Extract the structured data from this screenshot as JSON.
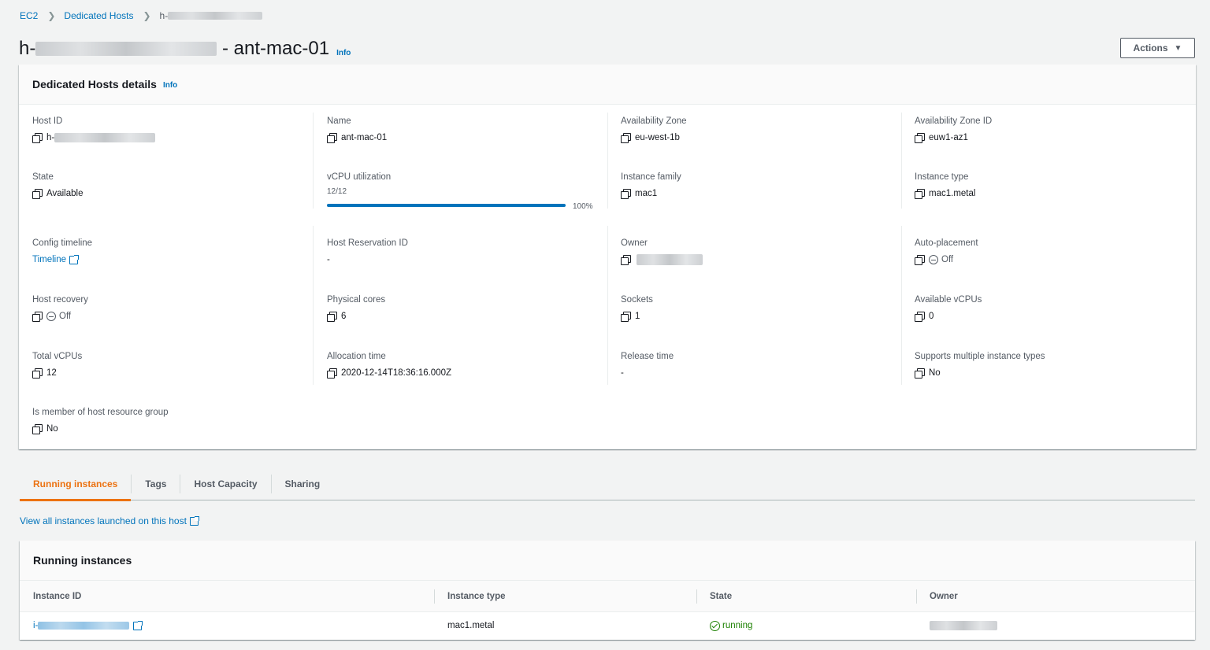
{
  "breadcrumb": {
    "root": "EC2",
    "section": "Dedicated Hosts",
    "current_prefix": "h-"
  },
  "header": {
    "title_prefix": "h-",
    "title_suffix": " - ant-mac-01",
    "info": "Info",
    "actions_label": "Actions"
  },
  "details": {
    "title": "Dedicated Hosts details",
    "info": "Info",
    "fields": {
      "host_id": {
        "label": "Host ID",
        "value": "h-"
      },
      "name": {
        "label": "Name",
        "value": "ant-mac-01"
      },
      "availability_zone": {
        "label": "Availability Zone",
        "value": "eu-west-1b"
      },
      "availability_zone_id": {
        "label": "Availability Zone ID",
        "value": "euw1-az1"
      },
      "state": {
        "label": "State",
        "value": "Available"
      },
      "vcpu_utilization": {
        "label": "vCPU utilization",
        "count": "12/12",
        "percent_label": "100%",
        "percent": 100
      },
      "instance_family": {
        "label": "Instance family",
        "value": "mac1"
      },
      "instance_type": {
        "label": "Instance type",
        "value": "mac1.metal"
      },
      "config_timeline": {
        "label": "Config timeline",
        "value": "Timeline"
      },
      "host_reservation_id": {
        "label": "Host Reservation ID",
        "value": "-"
      },
      "owner": {
        "label": "Owner",
        "value": ""
      },
      "auto_placement": {
        "label": "Auto-placement",
        "value": "Off"
      },
      "host_recovery": {
        "label": "Host recovery",
        "value": "Off"
      },
      "physical_cores": {
        "label": "Physical cores",
        "value": "6"
      },
      "sockets": {
        "label": "Sockets",
        "value": "1"
      },
      "available_vcpus": {
        "label": "Available vCPUs",
        "value": "0"
      },
      "total_vcpus": {
        "label": "Total vCPUs",
        "value": "12"
      },
      "allocation_time": {
        "label": "Allocation time",
        "value": "2020-12-14T18:36:16.000Z"
      },
      "release_time": {
        "label": "Release time",
        "value": "-"
      },
      "supports_multiple": {
        "label": "Supports multiple instance types",
        "value": "No"
      },
      "host_resource_group": {
        "label": "Is member of host resource group",
        "value": "No"
      }
    }
  },
  "tabs": [
    {
      "label": "Running instances",
      "active": true
    },
    {
      "label": "Tags",
      "active": false
    },
    {
      "label": "Host Capacity",
      "active": false
    },
    {
      "label": "Sharing",
      "active": false
    }
  ],
  "view_all_link": "View all instances launched on this host",
  "running_instances": {
    "title": "Running instances",
    "columns": [
      "Instance ID",
      "Instance type",
      "State",
      "Owner"
    ],
    "rows": [
      {
        "instance_id_prefix": "i-",
        "instance_type": "mac1.metal",
        "state": "running"
      }
    ]
  },
  "colors": {
    "link": "#0073bb",
    "accent": "#ec7211",
    "success": "#1d8102"
  }
}
